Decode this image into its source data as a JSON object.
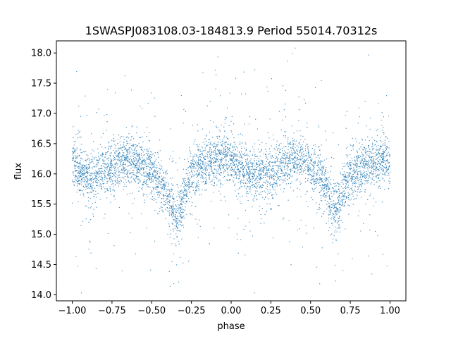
{
  "chart_data": {
    "type": "scatter",
    "title": "1SWASPJ083108.03-184813.9 Period 55014.70312s",
    "xlabel": "phase",
    "ylabel": "flux",
    "xlim": [
      -1.1,
      1.1
    ],
    "ylim": [
      13.9,
      18.2
    ],
    "x_ticks": [
      -1.0,
      -0.75,
      -0.5,
      -0.25,
      0.0,
      0.25,
      0.5,
      0.75,
      1.0
    ],
    "x_tick_labels": [
      "−1.00",
      "−0.75",
      "−0.50",
      "−0.25",
      "0.00",
      "0.25",
      "0.50",
      "0.75",
      "1.00"
    ],
    "y_ticks": [
      14.0,
      14.5,
      15.0,
      15.5,
      16.0,
      16.5,
      17.0,
      17.5,
      18.0
    ],
    "y_tick_labels": [
      "14.0",
      "14.5",
      "15.0",
      "15.5",
      "16.0",
      "16.5",
      "17.0",
      "17.5",
      "18.0"
    ],
    "grid": false,
    "legend": "none",
    "marker_color": "#1f77b4",
    "series": [
      {
        "x": [
          -1.0,
          -0.95,
          -0.9,
          -0.85,
          -0.8,
          -0.75,
          -0.7,
          -0.65,
          -0.6,
          -0.55,
          -0.5,
          -0.45,
          -0.4,
          -0.37,
          -0.34,
          -0.31,
          -0.28,
          -0.25,
          -0.2,
          -0.15,
          -0.1,
          -0.05,
          0.0,
          0.05,
          0.1,
          0.15,
          0.2,
          0.25,
          0.3,
          0.35,
          0.4,
          0.45,
          0.5,
          0.55,
          0.6,
          0.63,
          0.66,
          0.69,
          0.72,
          0.75,
          0.8,
          0.85,
          0.9,
          0.95,
          1.0
        ],
        "y": [
          16.2,
          16.05,
          15.95,
          15.95,
          16.05,
          16.15,
          16.2,
          16.25,
          16.2,
          16.1,
          16.0,
          15.85,
          15.65,
          15.45,
          15.3,
          15.5,
          15.75,
          16.0,
          16.1,
          16.2,
          16.25,
          16.3,
          16.2,
          16.1,
          16.0,
          15.95,
          16.0,
          16.05,
          16.15,
          16.2,
          16.25,
          16.2,
          16.05,
          15.95,
          15.75,
          15.5,
          15.35,
          15.55,
          15.8,
          15.95,
          16.05,
          16.15,
          16.2,
          16.25,
          16.2
        ]
      }
    ]
  }
}
